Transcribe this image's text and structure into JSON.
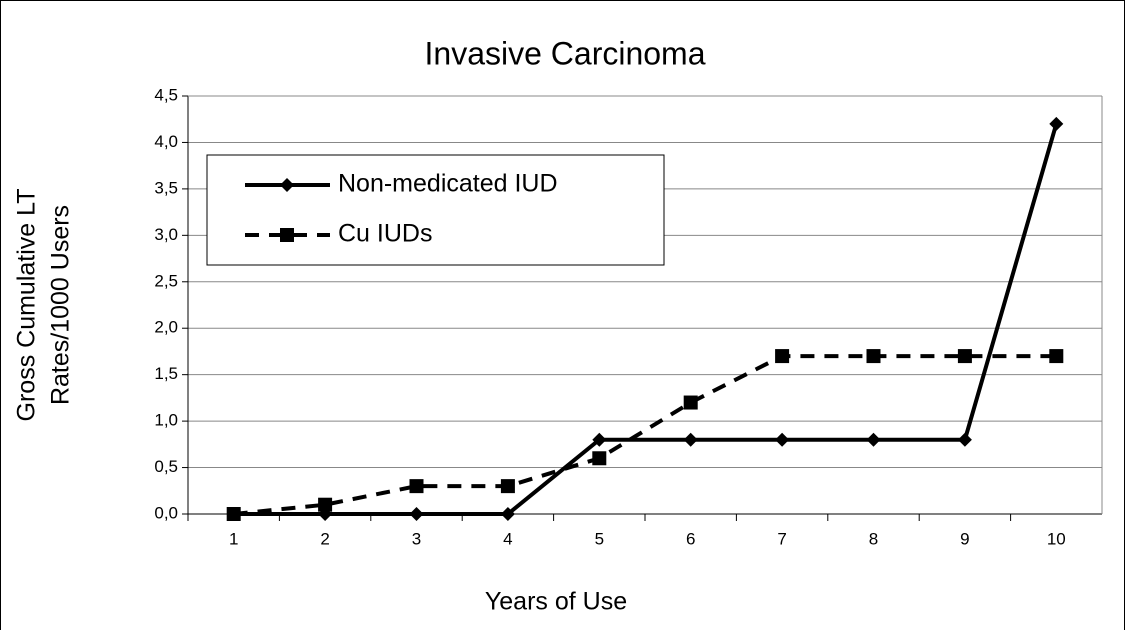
{
  "chart_data": {
    "type": "line",
    "title": "Invasive Carcinoma",
    "x_label": "Years of Use",
    "y_label": [
      "Gross Cumulative LT",
      "Rates/1000 Users"
    ],
    "categories": [
      "1",
      "2",
      "3",
      "4",
      "5",
      "6",
      "7",
      "8",
      "9",
      "10"
    ],
    "series": [
      {
        "name": "Non-medicated IUD",
        "color": "#000000",
        "style": "solid",
        "marker": "diamond",
        "values": [
          0,
          0,
          0,
          0,
          0.8,
          0.8,
          0.8,
          0.8,
          0.8,
          4.2
        ]
      },
      {
        "name": "Cu IUDs",
        "color": "#000000",
        "style": "dashed",
        "marker": "square",
        "values": [
          0,
          0.1,
          0.3,
          0.3,
          0.6,
          1.2,
          1.7,
          1.7,
          1.7,
          1.7
        ]
      }
    ],
    "ylim": [
      0,
      4.5
    ],
    "yticks": [
      {
        "value": 0,
        "label": "0,0"
      },
      {
        "value": 0.5,
        "label": "0,5"
      },
      {
        "value": 1,
        "label": "1,0"
      },
      {
        "value": 1.5,
        "label": "1,5"
      },
      {
        "value": 2,
        "label": "2,0"
      },
      {
        "value": 2.5,
        "label": "2,5"
      },
      {
        "value": 3,
        "label": "3,0"
      },
      {
        "value": 3.5,
        "label": "3,5"
      },
      {
        "value": 4,
        "label": "4,0"
      },
      {
        "value": 4.5,
        "label": "4,5"
      }
    ],
    "grid": true,
    "legend": "upper left"
  }
}
